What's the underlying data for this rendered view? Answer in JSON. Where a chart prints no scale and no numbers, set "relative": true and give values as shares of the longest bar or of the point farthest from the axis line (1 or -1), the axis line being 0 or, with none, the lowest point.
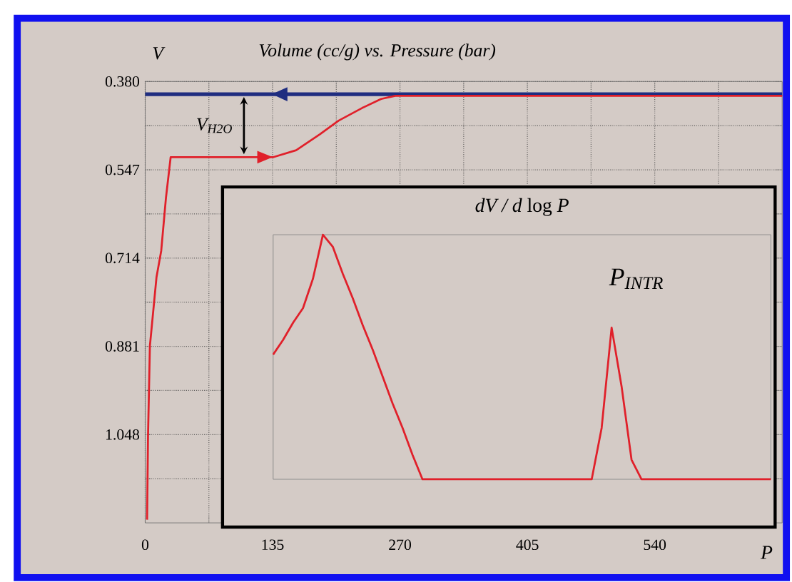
{
  "chart_data": [
    {
      "type": "line",
      "title": "Volume (cc/g) vs. Pressure (bar)",
      "xlabel": "P",
      "ylabel": "V",
      "xlim": [
        0,
        675
      ],
      "xticks": [
        0,
        {
          "value": 67.5,
          "label": null
        },
        135,
        {
          "value": 202.5,
          "label": null
        },
        270,
        {
          "value": 337.5,
          "label": null
        },
        405,
        {
          "value": 472.5,
          "label": null
        },
        540,
        {
          "value": 607.5,
          "label": null
        }
      ],
      "ylim": [
        1.215,
        0.38
      ],
      "yticks": [
        {
          "value": 0.38,
          "label": "0.380"
        },
        {
          "value": 0.4635,
          "label": null
        },
        0.547,
        {
          "value": 0.6305,
          "label": null
        },
        0.714,
        {
          "value": 0.7975,
          "label": null
        },
        0.881,
        {
          "value": 0.9645,
          "label": null
        },
        1.048,
        {
          "value": 1.1315,
          "label": null
        }
      ],
      "grid": true,
      "series": [
        {
          "color": "#1f2d80",
          "x": [
            0,
            675
          ],
          "values": [
            0.404,
            0.404
          ]
        },
        {
          "color": "#e0202a",
          "x": [
            2,
            3,
            5,
            12,
            17,
            22,
            27,
            136,
            160,
            185,
            205,
            230,
            250,
            265,
            675
          ],
          "values": [
            1.209,
            1.05,
            0.88,
            0.75,
            0.7,
            0.6,
            0.523,
            0.523,
            0.51,
            0.48,
            0.454,
            0.43,
            0.413,
            0.407,
            0.407
          ]
        }
      ],
      "annotations": [
        "V$_{H2O}$"
      ]
    },
    {
      "type": "line",
      "title": "*dV / d* log *P*",
      "relative": true,
      "categories": [
        null,
        null,
        null,
        null,
        null,
        null,
        null,
        null,
        null,
        null,
        null,
        null,
        null,
        null,
        null,
        null,
        null,
        null,
        null,
        null,
        null,
        null,
        null,
        null,
        null,
        null,
        null,
        null,
        null,
        null,
        null,
        null,
        null,
        null,
        null,
        null,
        null,
        null,
        null,
        null,
        null,
        null,
        null,
        null,
        null,
        null,
        null,
        null,
        null,
        null,
        null
      ],
      "series": [
        {
          "color": "#e0202a",
          "values": [
            0.51,
            0.57,
            0.64,
            0.7,
            0.82,
            1.0,
            0.95,
            0.84,
            0.74,
            0.63,
            0.53,
            0.42,
            0.31,
            0.21,
            0.1,
            0,
            0,
            0,
            0,
            0,
            0,
            0,
            0,
            0,
            0,
            0,
            0,
            0,
            0,
            0,
            0,
            0,
            0,
            0.21,
            0.62,
            0.38,
            0.08,
            0,
            0,
            0,
            0,
            0,
            0,
            0,
            0,
            0,
            0,
            0,
            0,
            0,
            0
          ]
        }
      ],
      "annotations": [
        "P$_{INTR}$"
      ]
    }
  ]
}
